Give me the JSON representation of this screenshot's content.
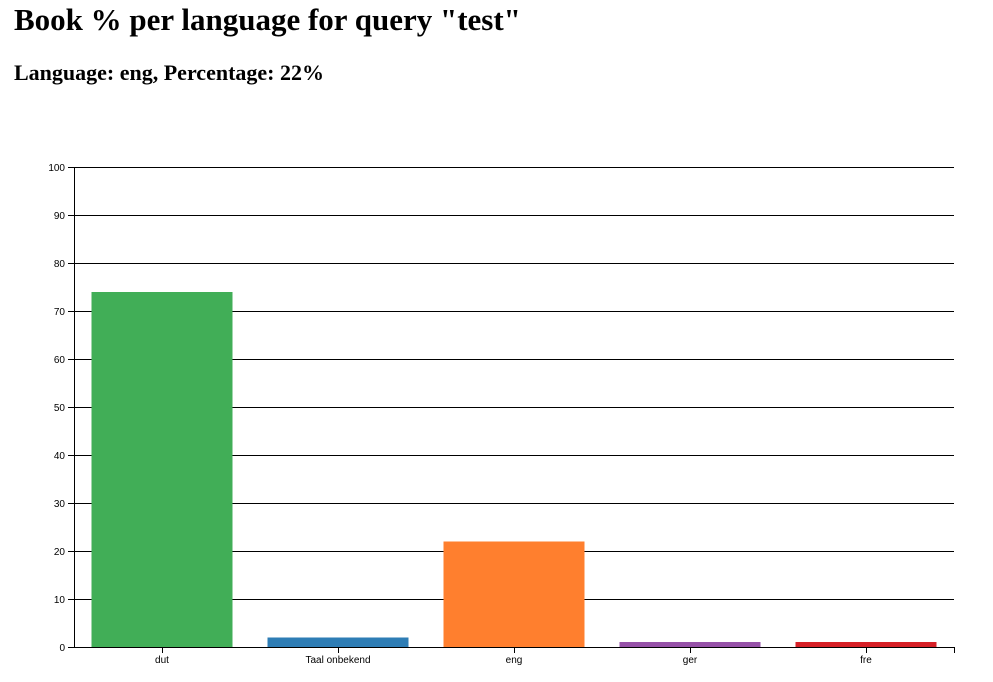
{
  "page": {
    "title": "Book % per language for query \"test\"",
    "hover_info": "Language: eng, Percentage: 22%"
  },
  "chart_data": {
    "type": "bar",
    "categories": [
      "dut",
      "Taal onbekend",
      "eng",
      "ger",
      "fre"
    ],
    "values": [
      74,
      2,
      22,
      1,
      1
    ],
    "colors": [
      "#41ae57",
      "#2e7db5",
      "#ff7f2e",
      "#9651a8",
      "#d62027"
    ],
    "ylim": [
      0,
      100
    ],
    "yticks": [
      0,
      10,
      20,
      30,
      40,
      50,
      60,
      70,
      80,
      90,
      100
    ],
    "grid": true,
    "xlabel": "",
    "ylabel": ""
  }
}
